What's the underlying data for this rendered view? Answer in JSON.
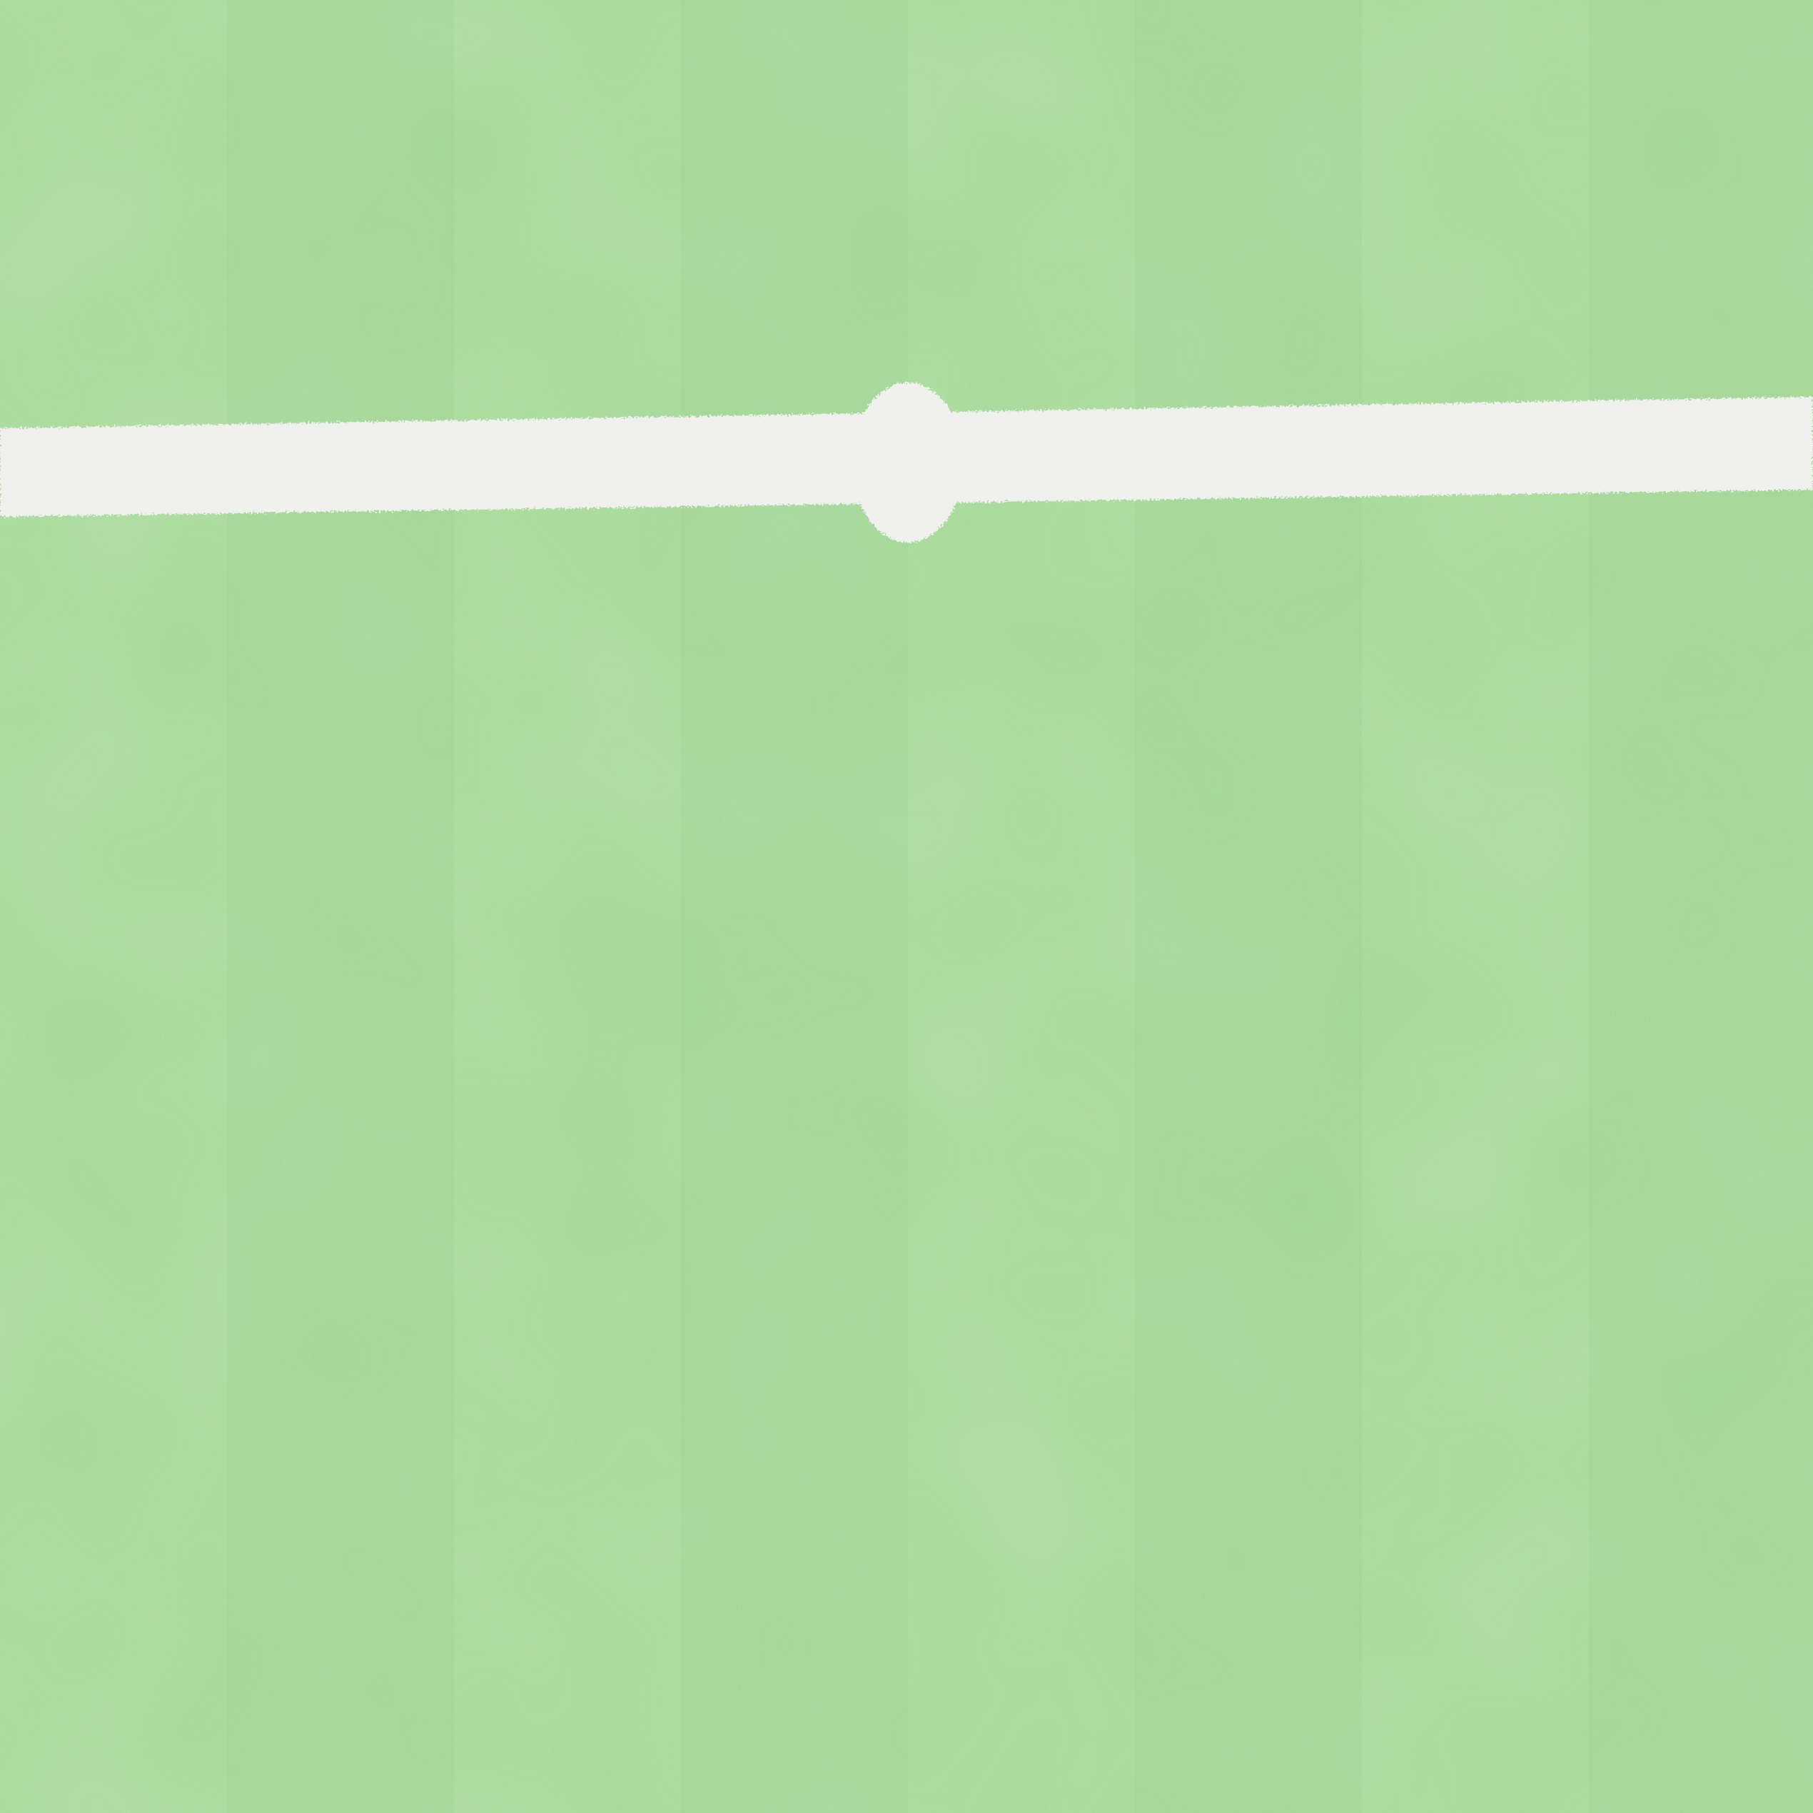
{
  "scene": {
    "type": "grass-field-top-view",
    "palette": {
      "grass_base": "#a0d692",
      "grass_dark": "#8fca82",
      "grass_light": "#b4e3a6",
      "line_white": "#f1f1ef"
    },
    "elements": {
      "midfield_line": "white-line",
      "center_spot": "white-spot"
    }
  }
}
